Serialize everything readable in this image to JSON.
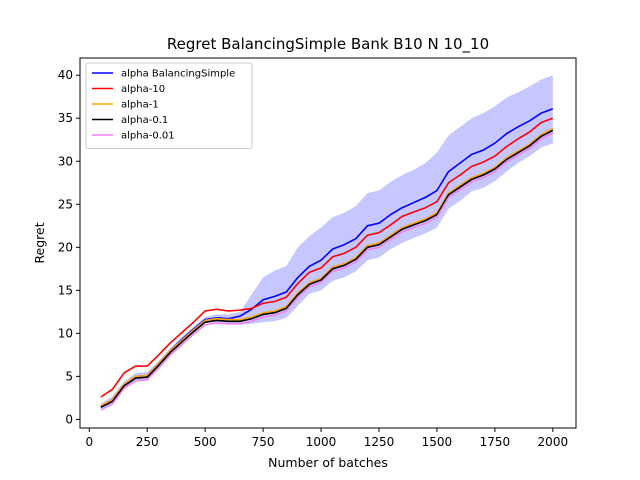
{
  "chart_data": {
    "type": "line",
    "title": "Regret BalancingSimple Bank B10 N 10_10",
    "xlabel": "Number of batches",
    "ylabel": "Regret",
    "xlim": [
      -40,
      2100
    ],
    "ylim": [
      -1,
      42
    ],
    "xticks": [
      0,
      250,
      500,
      750,
      1000,
      1250,
      1500,
      1750,
      2000
    ],
    "yticks": [
      0,
      5,
      10,
      15,
      20,
      25,
      30,
      35,
      40
    ],
    "grid": false,
    "legend_position": "top-left",
    "x": [
      50,
      100,
      150,
      200,
      250,
      300,
      350,
      400,
      450,
      500,
      550,
      600,
      650,
      700,
      750,
      800,
      850,
      900,
      950,
      1000,
      1050,
      1100,
      1150,
      1200,
      1250,
      1300,
      1350,
      1400,
      1450,
      1500,
      1550,
      1600,
      1650,
      1700,
      1750,
      1800,
      1850,
      1900,
      1950,
      2000
    ],
    "series": [
      {
        "name": "alpha BalancingSimple",
        "color": "#0000ff",
        "values": [
          1.5,
          2.3,
          4.0,
          5.0,
          5.1,
          6.5,
          8.0,
          9.3,
          10.5,
          11.6,
          11.8,
          11.7,
          12.0,
          12.8,
          13.9,
          14.3,
          14.8,
          16.5,
          17.8,
          18.5,
          19.8,
          20.3,
          21.0,
          22.5,
          22.8,
          23.8,
          24.6,
          25.2,
          25.8,
          26.6,
          28.8,
          29.8,
          30.8,
          31.3,
          32.1,
          33.2,
          34.0,
          34.7,
          35.6,
          36.1
        ],
        "upper": [
          1.8,
          2.7,
          4.4,
          5.4,
          5.5,
          6.8,
          8.3,
          9.6,
          10.8,
          11.9,
          12.2,
          12.2,
          12.5,
          14.5,
          16.5,
          17.3,
          17.8,
          20.0,
          21.3,
          22.3,
          23.5,
          24.0,
          24.8,
          26.3,
          26.6,
          27.6,
          28.4,
          29.0,
          29.8,
          31.0,
          33.0,
          34.0,
          35.0,
          35.6,
          36.4,
          37.4,
          38.0,
          38.7,
          39.5,
          40.0
        ],
        "lower": [
          1.1,
          1.8,
          3.5,
          4.5,
          4.6,
          6.1,
          7.6,
          8.9,
          10.1,
          11.2,
          11.3,
          11.1,
          11.0,
          11.1,
          11.3,
          11.4,
          11.8,
          13.2,
          14.6,
          15.0,
          16.1,
          16.5,
          17.2,
          18.5,
          18.8,
          19.8,
          20.5,
          21.1,
          21.6,
          22.3,
          24.5,
          25.4,
          26.5,
          26.9,
          27.7,
          28.8,
          29.8,
          30.6,
          31.6,
          32.1
        ]
      },
      {
        "name": "alpha-10",
        "color": "#ff0000",
        "values": [
          2.6,
          3.5,
          5.4,
          6.2,
          6.2,
          7.5,
          8.9,
          10.1,
          11.3,
          12.6,
          12.8,
          12.6,
          12.7,
          12.9,
          13.5,
          13.7,
          14.2,
          15.8,
          17.1,
          17.6,
          18.9,
          19.3,
          20.0,
          21.4,
          21.7,
          22.6,
          23.6,
          24.1,
          24.6,
          25.3,
          27.5,
          28.4,
          29.4,
          29.9,
          30.6,
          31.7,
          32.6,
          33.4,
          34.5,
          35.0
        ]
      },
      {
        "name": "alpha-1",
        "color": "#ffa500",
        "values": [
          1.6,
          2.3,
          4.1,
          5.0,
          5.1,
          6.5,
          8.0,
          9.2,
          10.4,
          11.5,
          11.7,
          11.6,
          11.6,
          11.9,
          12.4,
          12.6,
          13.1,
          14.7,
          15.9,
          16.4,
          17.7,
          18.1,
          18.8,
          20.2,
          20.5,
          21.4,
          22.3,
          22.8,
          23.3,
          24.0,
          26.3,
          27.2,
          28.1,
          28.6,
          29.3,
          30.4,
          31.2,
          32.0,
          33.1,
          33.8
        ]
      },
      {
        "name": "alpha-0.1",
        "color": "#000000",
        "values": [
          1.4,
          2.1,
          3.9,
          4.8,
          4.9,
          6.3,
          7.8,
          9.0,
          10.2,
          11.3,
          11.5,
          11.4,
          11.4,
          11.7,
          12.2,
          12.4,
          12.9,
          14.5,
          15.7,
          16.2,
          17.5,
          17.9,
          18.6,
          20.0,
          20.3,
          21.2,
          22.1,
          22.6,
          23.1,
          23.8,
          26.1,
          27.0,
          27.9,
          28.4,
          29.1,
          30.2,
          31.0,
          31.8,
          32.9,
          33.6
        ]
      },
      {
        "name": "alpha-0.01",
        "color": "#ee82ee",
        "values": [
          1.1,
          1.8,
          3.6,
          4.5,
          4.6,
          6.0,
          7.5,
          8.7,
          9.9,
          11.0,
          11.2,
          11.1,
          11.1,
          11.4,
          11.9,
          12.1,
          12.6,
          14.2,
          15.4,
          15.9,
          17.2,
          17.6,
          18.3,
          19.7,
          20.0,
          20.9,
          21.8,
          22.3,
          22.8,
          23.5,
          25.8,
          26.7,
          27.6,
          28.1,
          28.8,
          29.9,
          30.7,
          31.5,
          32.6,
          33.3
        ]
      }
    ]
  }
}
